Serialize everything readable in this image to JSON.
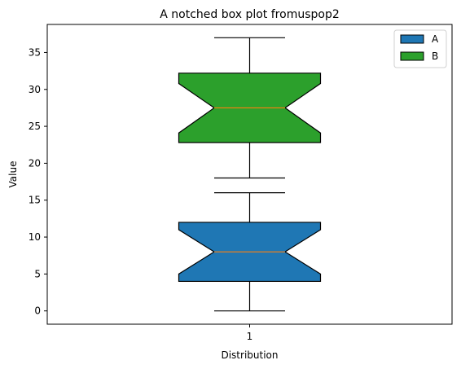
{
  "chart_data": {
    "type": "box",
    "title": "A notched box plot fromuspop2",
    "xlabel": "Distribution",
    "ylabel": "Value",
    "ylim": [
      -1.8,
      38.8
    ],
    "yticks": [
      0,
      5,
      10,
      15,
      20,
      25,
      30,
      35
    ],
    "xticks": [
      "1"
    ],
    "grid": false,
    "legend_position": "top-right",
    "series": [
      {
        "name": "A",
        "color": "#1f77b4",
        "whisker_low": 0,
        "q1": 4,
        "notch_low": 5,
        "median": 8,
        "notch_high": 11,
        "q3": 12,
        "whisker_high": 16
      },
      {
        "name": "B",
        "color": "#2ca02c",
        "whisker_low": 18,
        "q1": 22.8,
        "notch_low": 24.1,
        "median": 27.5,
        "notch_high": 30.8,
        "q3": 32.2,
        "whisker_high": 37
      }
    ],
    "median_color": "#ff7f0e"
  }
}
